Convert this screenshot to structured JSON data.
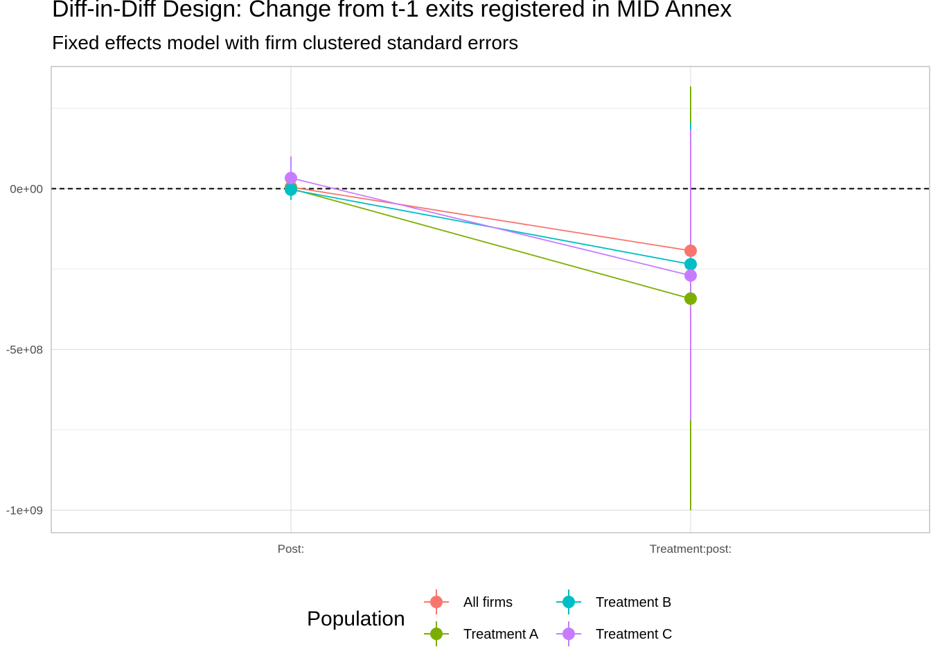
{
  "title": "Diff-in-Diff Design: Change from t-1 exits registered in MID Annex",
  "subtitle": "Fixed effects model with firm clustered standard errors",
  "chart_data": {
    "type": "scatter",
    "title": "Diff-in-Diff Design: Change from t-1 exits registered in MID Annex",
    "subtitle": "Fixed effects model with firm clustered standard errors",
    "xlabel": "",
    "ylabel": "",
    "categories": [
      "Post:",
      "Treatment:post:"
    ],
    "y_ticks": [
      0,
      -500000000,
      -1000000000
    ],
    "y_tick_labels": [
      "0e+00",
      "-5e+08",
      "-1e+09"
    ],
    "ylim": [
      -1070000000,
      380000000
    ],
    "reference_line": 0,
    "grid": true,
    "legend": {
      "title": "Population",
      "position": "bottom"
    },
    "series": [
      {
        "name": "All firms",
        "color": "#F8766D",
        "values": [
          5000000,
          -193000000
        ],
        "ci_low": [
          -20000000,
          -195000000
        ],
        "ci_high": [
          25000000,
          -191000000
        ]
      },
      {
        "name": "Treatment A",
        "color": "#7CAE00",
        "values": [
          0,
          -342000000
        ],
        "ci_low": [
          -15000000,
          -1000000000
        ],
        "ci_high": [
          15000000,
          318000000
        ]
      },
      {
        "name": "Treatment B",
        "color": "#00BFC4",
        "values": [
          -3000000,
          -235000000
        ],
        "ci_low": [
          -35000000,
          -700000000
        ],
        "ci_high": [
          30000000,
          205000000
        ]
      },
      {
        "name": "Treatment C",
        "color": "#C77CFF",
        "values": [
          33000000,
          -270000000
        ],
        "ci_low": [
          -10000000,
          -720000000
        ],
        "ci_high": [
          100000000,
          185000000
        ]
      }
    ]
  }
}
